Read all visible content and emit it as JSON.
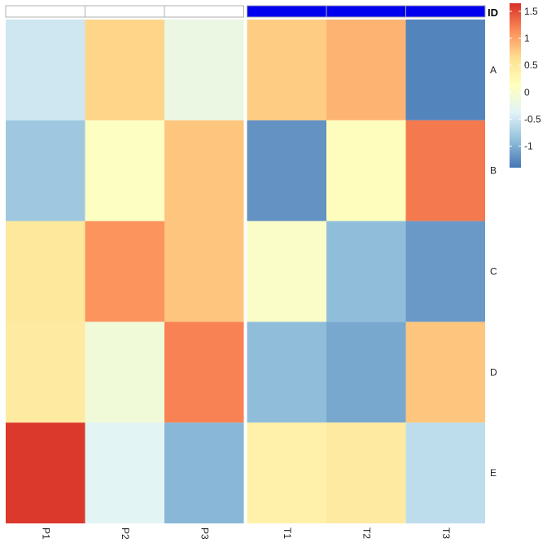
{
  "chart_data": {
    "type": "heatmap",
    "title": "",
    "columns": [
      "P1",
      "P2",
      "P3",
      "T1",
      "T2",
      "T3"
    ],
    "rows": [
      "A",
      "B",
      "C",
      "D",
      "E"
    ],
    "column_groups": [
      {
        "columns": [
          "P1",
          "P2",
          "P3"
        ],
        "color": "#ffffff"
      },
      {
        "columns": [
          "T1",
          "T2",
          "T3"
        ],
        "color": "#0000ee"
      }
    ],
    "annotation_label": "ID",
    "values": [
      [
        -0.5,
        0.7,
        -0.2,
        0.75,
        0.9,
        -1.3
      ],
      [
        -0.8,
        0.1,
        0.8,
        -1.2,
        0.15,
        1.25
      ],
      [
        0.5,
        1.1,
        0.8,
        0.05,
        -0.9,
        -1.15
      ],
      [
        0.45,
        -0.1,
        1.2,
        -0.9,
        -1.05,
        0.8
      ],
      [
        1.6,
        -0.35,
        -0.95,
        0.35,
        0.45,
        -0.6
      ]
    ],
    "legend": {
      "ticks": [
        1.5,
        1,
        0.5,
        0,
        -0.5,
        -1
      ],
      "tick_labels": [
        "1.5",
        "1",
        "0.5",
        "0",
        "-0.5",
        "-1"
      ],
      "range": [
        -1.4,
        1.65
      ],
      "colors": [
        "#4575b4",
        "#91bfdb",
        "#e0f3f8",
        "#ffffbf",
        "#fee090",
        "#fc8d59",
        "#d73027"
      ]
    }
  }
}
